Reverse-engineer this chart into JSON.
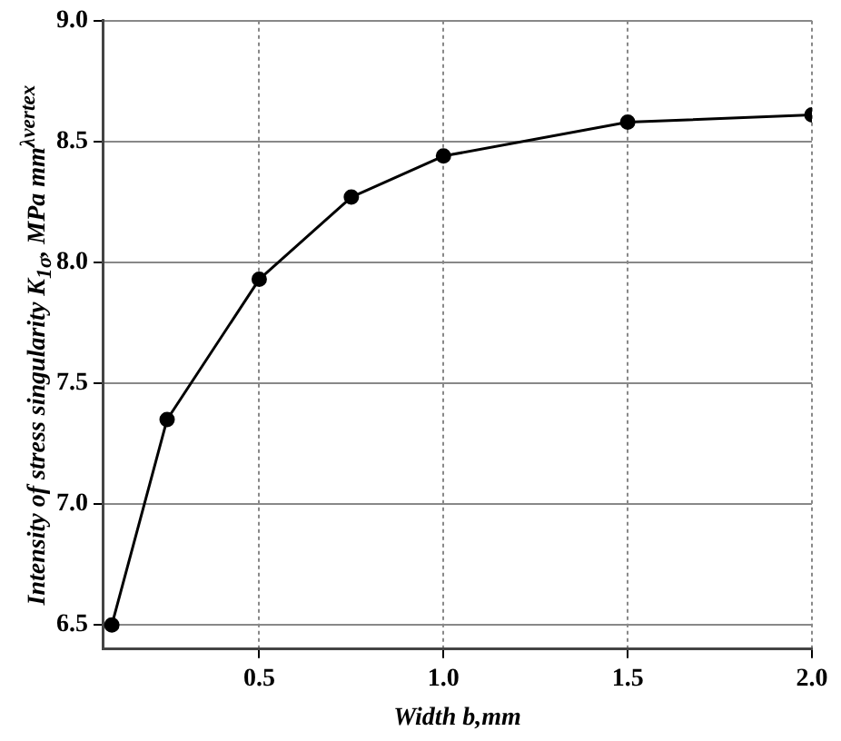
{
  "chart_data": {
    "type": "line",
    "xlabel": "Width b,mm",
    "ylabel": "Intensity of stress singularity K$_{1σ}$, MPa mm$^{λvertex}$",
    "x": [
      0.1,
      0.25,
      0.5,
      0.75,
      1.0,
      1.5,
      2.0
    ],
    "series": [
      {
        "color": "#000000",
        "values": [
          6.5,
          7.35,
          7.93,
          8.27,
          8.44,
          8.58,
          8.61
        ]
      }
    ],
    "xlim": [
      0.075,
      2.0
    ],
    "xticks": [
      {
        "value": 0.5,
        "label": "0.5"
      },
      {
        "value": 1.0,
        "label": "1.0"
      },
      {
        "value": 1.5,
        "label": "1.5"
      },
      {
        "value": 2.0,
        "label": "2.0"
      }
    ],
    "ylim": [
      6.4,
      9.0
    ],
    "yticks": [
      {
        "value": 6.5,
        "label": "6.5"
      },
      {
        "value": 7.0,
        "label": "7.0"
      },
      {
        "value": 7.5,
        "label": "7.5"
      },
      {
        "value": 8.0,
        "label": "8.0"
      },
      {
        "value": 8.5,
        "label": "8.5"
      },
      {
        "value": 9.0,
        "label": "9.0"
      }
    ],
    "grid": true,
    "marker": "circle",
    "line_style": "solid",
    "legend": false
  }
}
